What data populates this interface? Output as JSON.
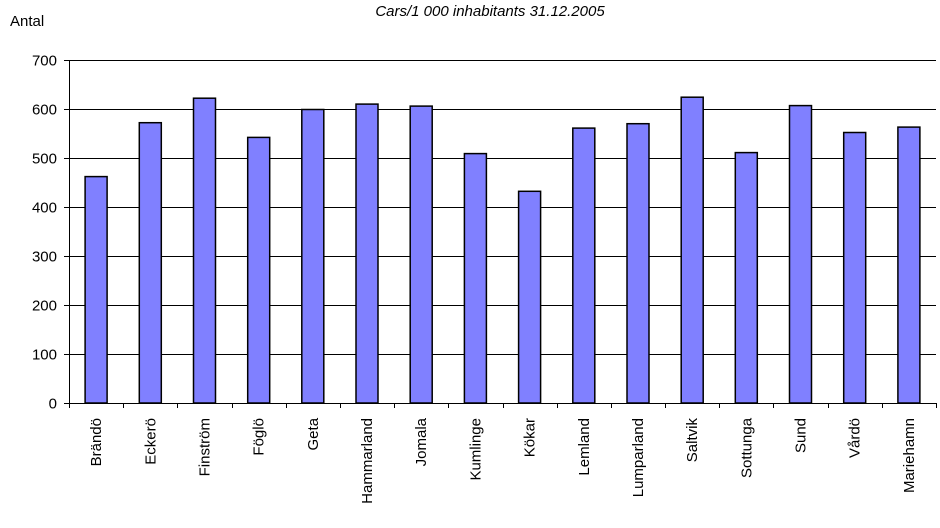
{
  "chart_data": {
    "type": "bar",
    "title": "Cars/1 000 inhabitants 31.12.2005",
    "ylabel": "Antal",
    "xlabel": "",
    "ylim": [
      0,
      700
    ],
    "yticks": [
      0,
      100,
      200,
      300,
      400,
      500,
      600,
      700
    ],
    "grid": "horizontal",
    "legend": "none",
    "bar_color": "#8080ff",
    "bar_edge_color": "#000000",
    "categories": [
      "Brändö",
      "Eckerö",
      "Finström",
      "Föglö",
      "Geta",
      "Hammarland",
      "Jomala",
      "Kumlinge",
      "Kökar",
      "Lemland",
      "Lumparland",
      "Saltvik",
      "Sottunga",
      "Sund",
      "Vårdö",
      "Mariehamn"
    ],
    "values": [
      462,
      572,
      622,
      542,
      599,
      610,
      606,
      509,
      432,
      561,
      570,
      624,
      511,
      607,
      552,
      563
    ]
  }
}
